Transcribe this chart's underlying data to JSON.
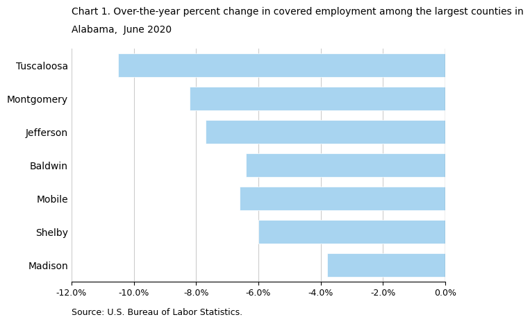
{
  "title_line1": "Chart 1. Over-the-year percent change in covered employment among the largest counties in",
  "title_line2": "Alabama,  June 2020",
  "categories": [
    "Madison",
    "Shelby",
    "Mobile",
    "Baldwin",
    "Jefferson",
    "Montgomery",
    "Tuscaloosa"
  ],
  "values": [
    -3.8,
    -6.0,
    -6.6,
    -6.4,
    -7.7,
    -8.2,
    -10.5
  ],
  "bar_color": "#a8d4f0",
  "bar_edge_color": "#ffffff",
  "xlim": [
    -12.0,
    0.0
  ],
  "xticks": [
    -12.0,
    -10.0,
    -8.0,
    -6.0,
    -4.0,
    -2.0,
    0.0
  ],
  "source_text": "Source: U.S. Bureau of Labor Statistics.",
  "title_fontsize": 10,
  "tick_fontsize": 9,
  "source_fontsize": 9,
  "label_fontsize": 10,
  "background_color": "#ffffff",
  "grid_color": "#cccccc",
  "bar_height": 0.72
}
